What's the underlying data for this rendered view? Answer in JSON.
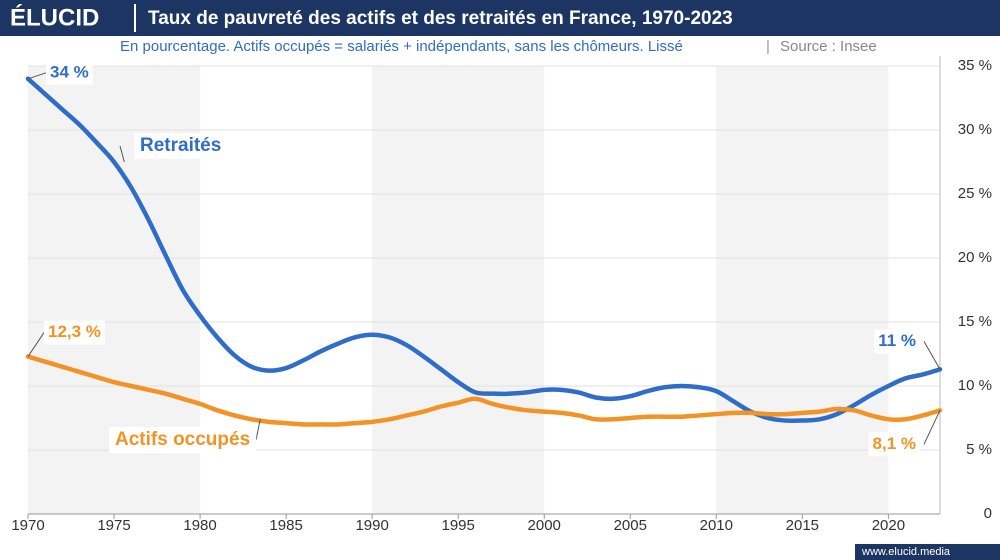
{
  "header": {
    "logo": "ÉLUCID"
  },
  "footer": "www.elucid.media",
  "chart_data": {
    "type": "line",
    "title": "Taux de pauvreté des actifs et des retraités en France, 1970-2023",
    "subtitle": "En pourcentage. Actifs occupés = salariés + indépendants, sans les chômeurs. Lissé",
    "source": "Source : Insee",
    "x": [
      1970,
      1971,
      1972,
      1973,
      1974,
      1975,
      1976,
      1977,
      1978,
      1979,
      1980,
      1981,
      1982,
      1983,
      1984,
      1985,
      1986,
      1987,
      1988,
      1989,
      1990,
      1991,
      1992,
      1993,
      1994,
      1995,
      1996,
      1997,
      1998,
      1999,
      2000,
      2001,
      2002,
      2003,
      2004,
      2005,
      2006,
      2007,
      2008,
      2009,
      2010,
      2011,
      2012,
      2013,
      2014,
      2015,
      2016,
      2017,
      2018,
      2019,
      2020,
      2021,
      2022,
      2023
    ],
    "series": [
      {
        "name": "Retraités",
        "color": "#2f6dc8",
        "values": [
          34,
          32.8,
          31.6,
          30.4,
          29.0,
          27.5,
          25.5,
          23.0,
          20.2,
          17.5,
          15.5,
          13.8,
          12.4,
          11.5,
          11.2,
          11.4,
          12.0,
          12.7,
          13.3,
          13.8,
          14.0,
          13.8,
          13.2,
          12.3,
          11.3,
          10.3,
          9.5,
          9.4,
          9.4,
          9.5,
          9.7,
          9.7,
          9.5,
          9.1,
          9.0,
          9.2,
          9.6,
          9.9,
          10.0,
          9.9,
          9.6,
          8.8,
          8.0,
          7.5,
          7.3,
          7.3,
          7.4,
          7.8,
          8.5,
          9.3,
          10.0,
          10.6,
          10.9,
          11.3
        ],
        "value_labels": [
          "34 %",
          null,
          null,
          null,
          null,
          null,
          null,
          null,
          null,
          null,
          null,
          null,
          null,
          null,
          null,
          null,
          null,
          null,
          null,
          null,
          null,
          null,
          null,
          null,
          null,
          null,
          null,
          null,
          null,
          null,
          null,
          null,
          null,
          null,
          null,
          null,
          null,
          null,
          null,
          null,
          null,
          null,
          null,
          null,
          null,
          null,
          null,
          null,
          null,
          null,
          null,
          null,
          null,
          "11 %"
        ]
      },
      {
        "name": "Actifs occupés",
        "color": "#f39325",
        "values": [
          12.3,
          11.9,
          11.5,
          11.1,
          10.7,
          10.3,
          10.0,
          9.7,
          9.4,
          9.0,
          8.6,
          8.1,
          7.7,
          7.4,
          7.2,
          7.1,
          7.0,
          7.0,
          7.0,
          7.1,
          7.2,
          7.4,
          7.7,
          8.0,
          8.4,
          8.7,
          9.0,
          8.6,
          8.3,
          8.1,
          8.0,
          7.9,
          7.7,
          7.4,
          7.4,
          7.5,
          7.6,
          7.6,
          7.6,
          7.7,
          7.8,
          7.9,
          7.9,
          7.8,
          7.8,
          7.9,
          8.0,
          8.2,
          8.1,
          7.7,
          7.4,
          7.4,
          7.7,
          8.1
        ],
        "value_labels": [
          "12,3 %",
          null,
          null,
          null,
          null,
          null,
          null,
          null,
          null,
          null,
          null,
          null,
          null,
          null,
          null,
          null,
          null,
          null,
          null,
          null,
          null,
          null,
          null,
          null,
          null,
          null,
          null,
          null,
          null,
          null,
          null,
          null,
          null,
          null,
          null,
          null,
          null,
          null,
          null,
          null,
          null,
          null,
          null,
          null,
          null,
          null,
          null,
          null,
          null,
          null,
          null,
          null,
          null,
          "8,1 %"
        ]
      }
    ],
    "xlim": [
      1970,
      2023
    ],
    "xticks": [
      1970,
      1975,
      1980,
      1985,
      1990,
      1995,
      2000,
      2005,
      2010,
      2015,
      2020
    ],
    "ylim": [
      0,
      35
    ],
    "yticks": [
      0,
      {
        "value": 5,
        "label": "5 %"
      },
      {
        "value": 10,
        "label": "10 %"
      },
      {
        "value": 15,
        "label": "15 %"
      },
      {
        "value": 20,
        "label": "20 %"
      },
      {
        "value": 25,
        "label": "25 %"
      },
      {
        "value": 30,
        "label": "30 %"
      },
      {
        "value": 35,
        "label": "35 %"
      }
    ],
    "grid": true
  }
}
